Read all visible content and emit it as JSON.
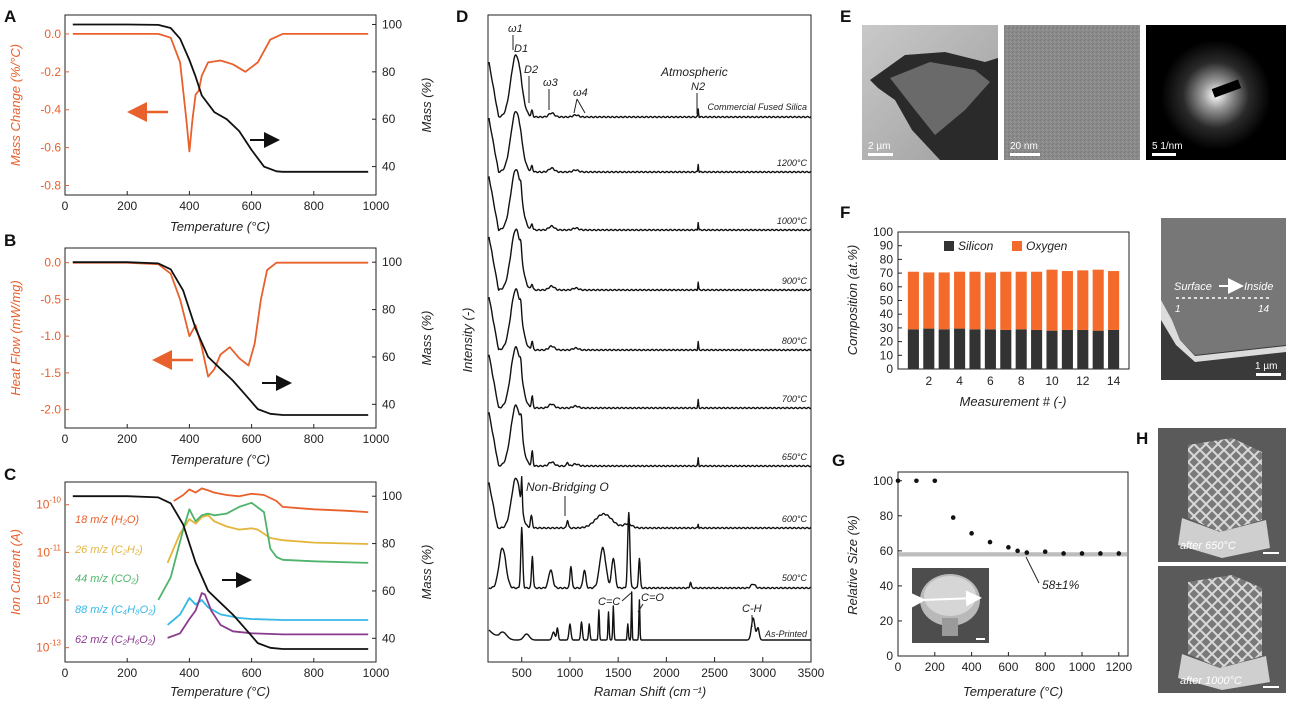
{
  "colors": {
    "orange": "#e8602c",
    "black": "#111111",
    "yellow": "#e3b53a",
    "green": "#4fb36b",
    "cyan": "#35b8e6",
    "purple": "#8a3a8f",
    "silicon": "#333333",
    "oxygen": "#f36a2b",
    "grey_band": "#bdbdbd"
  },
  "panels": {
    "A": "A",
    "B": "B",
    "C": "C",
    "D": "D",
    "E": "E",
    "F": "F",
    "G": "G",
    "H": "H"
  },
  "chart_data": [
    {
      "id": "A",
      "type": "line",
      "xlabel": "Temperature (°C)",
      "ylabel_left": "Mass Change (%/°C)",
      "ylabel_right": "Mass (%)",
      "xlim": [
        0,
        1000
      ],
      "ylim_left": [
        -0.85,
        0.1
      ],
      "ylim_right": [
        28,
        104
      ],
      "x_ticks": [
        "0",
        "200",
        "400",
        "600",
        "800",
        "1000"
      ],
      "y_ticks_left": [
        "0.0",
        "-0.2",
        "-0.4",
        "-0.6",
        "-0.8"
      ],
      "y_ticks_right": [
        "100",
        "80",
        "60",
        "40"
      ],
      "series": [
        {
          "axis": "left",
          "color": "orange",
          "x": [
            25,
            100,
            200,
            300,
            340,
            370,
            390,
            400,
            410,
            420,
            430,
            440,
            460,
            500,
            540,
            580,
            620,
            660,
            700,
            800,
            900,
            975
          ],
          "y": [
            0.0,
            0.0,
            0.0,
            0.0,
            -0.02,
            -0.15,
            -0.45,
            -0.62,
            -0.45,
            -0.32,
            -0.3,
            -0.22,
            -0.15,
            -0.14,
            -0.16,
            -0.2,
            -0.15,
            -0.03,
            0.0,
            0.0,
            0.0,
            0.0
          ]
        },
        {
          "axis": "right",
          "color": "black",
          "x": [
            25,
            100,
            200,
            300,
            340,
            370,
            400,
            420,
            440,
            480,
            520,
            560,
            600,
            640,
            680,
            700,
            800,
            900,
            975
          ],
          "y": [
            100,
            100,
            100,
            99.8,
            98.5,
            94,
            85,
            78,
            70,
            63,
            60,
            55,
            47,
            40,
            38,
            37.8,
            37.8,
            37.8,
            37.8
          ]
        }
      ]
    },
    {
      "id": "B",
      "type": "line",
      "xlabel": "Temperature (°C)",
      "ylabel_left": "Heat Flow (mW/mg)",
      "ylabel_right": "Mass (%)",
      "xlim": [
        0,
        1000
      ],
      "ylim_left": [
        -2.25,
        0.2
      ],
      "ylim_right": [
        30,
        106
      ],
      "x_ticks": [
        "0",
        "200",
        "400",
        "600",
        "800",
        "1000"
      ],
      "y_ticks_left": [
        "0.0",
        "-0.5",
        "-1.0",
        "-1.5",
        "-2.0"
      ],
      "y_ticks_right": [
        "100",
        "80",
        "60",
        "40"
      ],
      "series": [
        {
          "axis": "left",
          "color": "orange",
          "x": [
            25,
            100,
            200,
            300,
            340,
            370,
            400,
            420,
            440,
            460,
            480,
            500,
            530,
            560,
            590,
            610,
            630,
            650,
            680,
            700,
            800,
            975
          ],
          "y": [
            0.0,
            0.0,
            0.0,
            -0.02,
            -0.15,
            -0.5,
            -1.0,
            -0.85,
            -1.15,
            -1.55,
            -1.45,
            -1.25,
            -1.15,
            -1.3,
            -1.4,
            -1.1,
            -0.5,
            -0.1,
            0.0,
            0.0,
            0.0,
            0.0
          ]
        },
        {
          "axis": "right",
          "color": "black",
          "x": [
            25,
            100,
            200,
            300,
            340,
            380,
            420,
            460,
            500,
            540,
            580,
            620,
            660,
            700,
            800,
            975
          ],
          "y": [
            100,
            100,
            100,
            99.5,
            97,
            88,
            72,
            60,
            55,
            50,
            44,
            38,
            36,
            35.5,
            35.5,
            35.5
          ]
        }
      ]
    },
    {
      "id": "C",
      "type": "line",
      "xlabel": "Temperature (°C)",
      "ylabel_left": "Ion Current (A)",
      "ylabel_right": "Mass (%)",
      "xlim": [
        0,
        1000
      ],
      "yscale_left": "log",
      "ylim_left": [
        5e-14,
        3e-10
      ],
      "ylim_right": [
        30,
        106
      ],
      "y_ticks_left": [
        "10^-10",
        "10^-11",
        "10^-12",
        "10^-13"
      ],
      "y_ticks_right": [
        "100",
        "80",
        "60",
        "40"
      ],
      "x_ticks": [
        "0",
        "200",
        "400",
        "600",
        "800",
        "1000"
      ],
      "legend": [
        "18 m/z (H₂O)",
        "26 m/z (C₂H₂)",
        "44 m/z (CO₂)",
        "88 m/z (C₄H₈O₂)",
        "62 m/z (C₂H₆O₂)"
      ],
      "series": [
        {
          "name": "18 m/z (H₂O)",
          "axis": "left",
          "color": "orange",
          "x": [
            350,
            380,
            400,
            420,
            440,
            460,
            480,
            520,
            560,
            600,
            640,
            680,
            700,
            800,
            900,
            975
          ],
          "y": [
            1.2e-10,
            1.6e-10,
            2.1e-10,
            1.8e-10,
            2.2e-10,
            2e-10,
            1.8e-10,
            1.6e-10,
            1.5e-10,
            1.7e-10,
            1.6e-10,
            1.2e-10,
            9e-11,
            8e-11,
            7.5e-11,
            7e-11
          ]
        },
        {
          "name": "26 m/z (C₂H₂)",
          "axis": "left",
          "color": "yellow",
          "x": [
            330,
            370,
            400,
            420,
            440,
            460,
            480,
            520,
            560,
            600,
            620,
            660,
            700,
            800,
            975
          ],
          "y": [
            6e-12,
            2.5e-11,
            5e-11,
            4e-11,
            5.5e-11,
            6e-11,
            4.5e-11,
            3.5e-11,
            3e-11,
            3.2e-11,
            3e-11,
            2e-11,
            1.8e-11,
            1.6e-11,
            1.5e-11
          ]
        },
        {
          "name": "44 m/z (CO₂)",
          "axis": "left",
          "color": "green",
          "x": [
            300,
            340,
            380,
            400,
            420,
            440,
            460,
            480,
            520,
            560,
            600,
            640,
            660,
            680,
            700,
            800,
            975
          ],
          "y": [
            1e-12,
            3e-12,
            3e-11,
            8e-11,
            4.5e-11,
            6e-11,
            6.5e-11,
            6e-11,
            6.5e-11,
            9e-11,
            1.1e-10,
            7e-11,
            1.2e-11,
            8e-12,
            7e-12,
            6.5e-12,
            6e-12
          ]
        },
        {
          "name": "88 m/z (C₄H₈O₂)",
          "axis": "left",
          "color": "cyan",
          "x": [
            330,
            370,
            400,
            420,
            440,
            460,
            500,
            560,
            600,
            700,
            800,
            975
          ],
          "y": [
            3e-13,
            5e-13,
            1.1e-12,
            8e-13,
            1e-12,
            7e-13,
            5e-13,
            4.2e-13,
            4e-13,
            3.8e-13,
            3.8e-13,
            3.8e-13
          ]
        },
        {
          "name": "62 m/z (C₂H₆O₂)",
          "axis": "left",
          "color": "purple",
          "x": [
            330,
            370,
            400,
            420,
            440,
            450,
            470,
            500,
            540,
            600,
            700,
            800,
            975
          ],
          "y": [
            1.6e-13,
            2e-13,
            4e-13,
            6e-13,
            1.4e-12,
            1.3e-12,
            6e-13,
            3e-13,
            2.2e-13,
            2e-13,
            1.9e-13,
            1.9e-13,
            1.9e-13
          ]
        },
        {
          "name": "Mass",
          "axis": "right",
          "color": "black",
          "x": [
            25,
            100,
            200,
            300,
            340,
            380,
            420,
            460,
            500,
            540,
            580,
            620,
            660,
            700,
            800,
            975
          ],
          "y": [
            100,
            100,
            100,
            99.5,
            97,
            88,
            72,
            60,
            55,
            50,
            44,
            38,
            36,
            35.5,
            35.5,
            35.5
          ]
        }
      ]
    },
    {
      "id": "D",
      "type": "line",
      "xlabel": "Raman Shift (cm⁻¹)",
      "ylabel": "Intensity (-)",
      "xlim": [
        150,
        3500
      ],
      "x_ticks": [
        "500",
        "1000",
        "1500",
        "2000",
        "2500",
        "3000",
        "3500"
      ],
      "traces": [
        "Commercial Fused Silica",
        "1200°C",
        "1000°C",
        "900°C",
        "800°C",
        "700°C",
        "650°C",
        "600°C",
        "500°C",
        "As-Printed"
      ],
      "peak_labels": [
        "ω₁",
        "D₁",
        "D₂",
        "ω₃",
        "ω₄",
        "Atmospheric",
        "N₂",
        "Non-Bridging O",
        "C=C",
        "C=O",
        "C-H"
      ]
    },
    {
      "id": "F",
      "type": "bar",
      "stacked": true,
      "xlabel": "Measurement # (-)",
      "ylabel": "Composition (at.%)",
      "ylim": [
        0,
        100
      ],
      "categories": [
        "1",
        "2",
        "3",
        "4",
        "5",
        "6",
        "7",
        "8",
        "9",
        "10",
        "11",
        "12",
        "13",
        "14"
      ],
      "x_ticks": [
        "2",
        "4",
        "6",
        "8",
        "10",
        "12",
        "14"
      ],
      "y_ticks": [
        "0",
        "10",
        "20",
        "30",
        "40",
        "50",
        "60",
        "70",
        "80",
        "90",
        "100"
      ],
      "series": [
        {
          "name": "Silicon",
          "color": "silicon",
          "values": [
            29,
            29.5,
            29,
            29.5,
            29,
            29,
            28.5,
            29,
            28.5,
            28,
            28.5,
            28.5,
            28,
            28.5
          ]
        },
        {
          "name": "Oxygen",
          "color": "oxygen",
          "values": [
            42,
            41,
            41.5,
            41.5,
            42,
            41.5,
            42.5,
            42,
            42.5,
            44.5,
            43,
            43.5,
            44.5,
            43
          ]
        }
      ]
    },
    {
      "id": "G",
      "type": "scatter",
      "xlabel": "Temperature (°C)",
      "ylabel": "Relative Size (%)",
      "xlim": [
        0,
        1250
      ],
      "ylim": [
        0,
        105
      ],
      "x_ticks": [
        "0",
        "200",
        "400",
        "600",
        "800",
        "1000",
        "1200"
      ],
      "y_ticks": [
        "0",
        "20",
        "40",
        "60",
        "80",
        "100"
      ],
      "band_value": 58,
      "annotation": "58±1%",
      "x": [
        0,
        100,
        200,
        300,
        400,
        500,
        600,
        650,
        700,
        800,
        900,
        1000,
        1100,
        1200
      ],
      "y": [
        100,
        100,
        100,
        79,
        70,
        65,
        62,
        60,
        59,
        59.5,
        58.5,
        58.5,
        58.5,
        58.5
      ]
    }
  ],
  "panel_d_labels": {
    "omega1": "ω1",
    "D1": "D1",
    "D2": "D2",
    "omega3": "ω3",
    "omega4": "ω4",
    "atm": "Atmospheric",
    "n2": "N2",
    "nbo": "Non-Bridging O",
    "cc": "C=C",
    "co": "C=O",
    "ch": "C-H"
  },
  "panel_e": {
    "scales": [
      "2 µm",
      "20 nm",
      "5 1/nm"
    ]
  },
  "panel_f": {
    "surface": "Surface",
    "inside": "Inside",
    "start": "1",
    "end": "14",
    "scale": "1 µm"
  },
  "panel_h": {
    "labels": [
      "after 650°C",
      "after 1000°C"
    ]
  }
}
